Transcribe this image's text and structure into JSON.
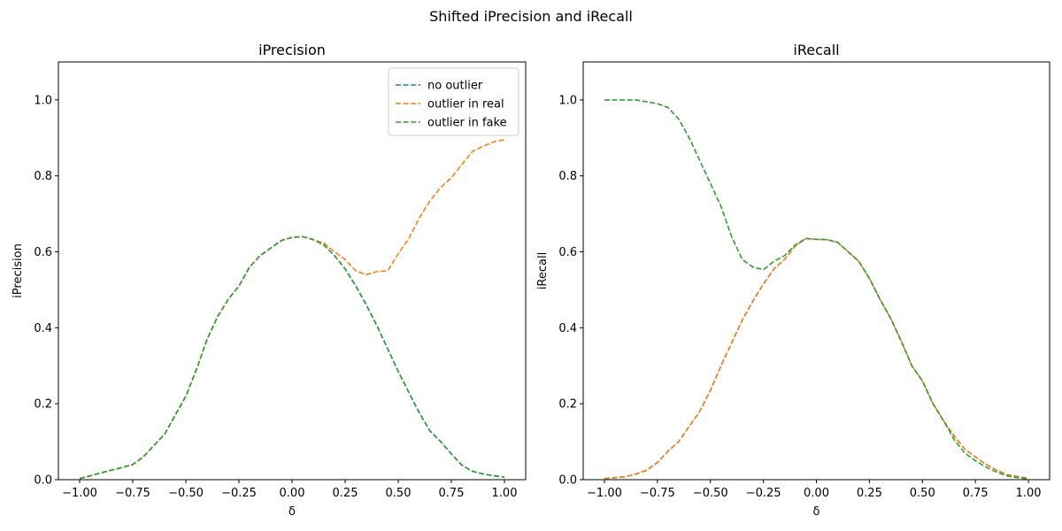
{
  "figure": {
    "suptitle": "Shifted iPrecision and iRecall"
  },
  "chart_data": [
    {
      "type": "line",
      "title": "iPrecision",
      "xlabel": "δ",
      "ylabel": "iPrecision",
      "xlim": [
        -1.1,
        1.1
      ],
      "ylim": [
        0.0,
        1.1
      ],
      "xticks": [
        -1.0,
        -0.75,
        -0.5,
        -0.25,
        0.0,
        0.25,
        0.5,
        0.75,
        1.0
      ],
      "xtick_labels": [
        "−1.00",
        "−0.75",
        "−0.50",
        "−0.25",
        "0.00",
        "0.25",
        "0.50",
        "0.75",
        "1.00"
      ],
      "yticks": [
        0.0,
        0.2,
        0.4,
        0.6,
        0.8,
        1.0
      ],
      "ytick_labels": [
        "0.0",
        "0.2",
        "0.4",
        "0.6",
        "0.8",
        "1.0"
      ],
      "legend": {
        "placement": "top-right",
        "entries": [
          "no outlier",
          "outlier in real",
          "outlier in fake"
        ]
      },
      "line_style": "dashed",
      "x": [
        -1.0,
        -0.95,
        -0.9,
        -0.85,
        -0.8,
        -0.75,
        -0.7,
        -0.65,
        -0.6,
        -0.55,
        -0.5,
        -0.45,
        -0.4,
        -0.35,
        -0.3,
        -0.25,
        -0.2,
        -0.15,
        -0.1,
        -0.05,
        0.0,
        0.05,
        0.1,
        0.15,
        0.2,
        0.25,
        0.3,
        0.35,
        0.4,
        0.45,
        0.5,
        0.55,
        0.6,
        0.65,
        0.7,
        0.75,
        0.8,
        0.85,
        0.9,
        0.95,
        1.0
      ],
      "series": [
        {
          "name": "no outlier",
          "color": "#1f77b4",
          "values": [
            0.003,
            0.01,
            0.018,
            0.025,
            0.032,
            0.04,
            0.06,
            0.09,
            0.12,
            0.17,
            0.22,
            0.29,
            0.37,
            0.43,
            0.475,
            0.51,
            0.56,
            0.59,
            0.61,
            0.63,
            0.638,
            0.64,
            0.632,
            0.618,
            0.59,
            0.555,
            0.51,
            0.46,
            0.405,
            0.345,
            0.285,
            0.23,
            0.175,
            0.128,
            0.1,
            0.068,
            0.038,
            0.022,
            0.015,
            0.01,
            0.007
          ]
        },
        {
          "name": "outlier in real",
          "color": "#ff7f0e",
          "values": [
            0.003,
            0.01,
            0.018,
            0.025,
            0.032,
            0.04,
            0.06,
            0.09,
            0.12,
            0.17,
            0.22,
            0.29,
            0.37,
            0.43,
            0.475,
            0.51,
            0.56,
            0.59,
            0.61,
            0.63,
            0.638,
            0.64,
            0.632,
            0.623,
            0.6,
            0.58,
            0.55,
            0.54,
            0.548,
            0.55,
            0.595,
            0.635,
            0.69,
            0.735,
            0.77,
            0.795,
            0.83,
            0.865,
            0.878,
            0.89,
            0.895
          ]
        },
        {
          "name": "outlier in fake",
          "color": "#2ca02c",
          "values": [
            0.003,
            0.01,
            0.018,
            0.025,
            0.032,
            0.04,
            0.06,
            0.09,
            0.12,
            0.17,
            0.22,
            0.29,
            0.37,
            0.43,
            0.475,
            0.51,
            0.56,
            0.59,
            0.61,
            0.63,
            0.638,
            0.64,
            0.632,
            0.618,
            0.59,
            0.555,
            0.51,
            0.46,
            0.405,
            0.345,
            0.285,
            0.23,
            0.175,
            0.128,
            0.1,
            0.068,
            0.038,
            0.022,
            0.015,
            0.01,
            0.007
          ]
        }
      ]
    },
    {
      "type": "line",
      "title": "iRecall",
      "xlabel": "δ",
      "ylabel": "iRecall",
      "xlim": [
        -1.1,
        1.1
      ],
      "ylim": [
        0.0,
        1.1
      ],
      "xticks": [
        -1.0,
        -0.75,
        -0.5,
        -0.25,
        0.0,
        0.25,
        0.5,
        0.75,
        1.0
      ],
      "xtick_labels": [
        "−1.00",
        "−0.75",
        "−0.50",
        "−0.25",
        "0.00",
        "0.25",
        "0.50",
        "0.75",
        "1.00"
      ],
      "yticks": [
        0.0,
        0.2,
        0.4,
        0.6,
        0.8,
        1.0
      ],
      "ytick_labels": [
        "0.0",
        "0.2",
        "0.4",
        "0.6",
        "0.8",
        "1.0"
      ],
      "line_style": "dashed",
      "x": [
        -1.0,
        -0.95,
        -0.9,
        -0.85,
        -0.8,
        -0.75,
        -0.7,
        -0.65,
        -0.6,
        -0.55,
        -0.5,
        -0.45,
        -0.4,
        -0.35,
        -0.3,
        -0.25,
        -0.2,
        -0.15,
        -0.1,
        -0.05,
        0.0,
        0.05,
        0.1,
        0.15,
        0.2,
        0.25,
        0.3,
        0.35,
        0.4,
        0.45,
        0.5,
        0.55,
        0.6,
        0.65,
        0.7,
        0.75,
        0.8,
        0.85,
        0.9,
        0.95,
        1.0
      ],
      "series": [
        {
          "name": "no outlier",
          "color": "#1f77b4",
          "values": [
            0.003,
            0.005,
            0.008,
            0.015,
            0.025,
            0.045,
            0.075,
            0.1,
            0.14,
            0.18,
            0.235,
            0.3,
            0.36,
            0.42,
            0.47,
            0.515,
            0.555,
            0.58,
            0.615,
            0.635,
            0.633,
            0.632,
            0.625,
            0.6,
            0.575,
            0.53,
            0.475,
            0.425,
            0.365,
            0.3,
            0.26,
            0.2,
            0.155,
            0.115,
            0.08,
            0.06,
            0.04,
            0.025,
            0.013,
            0.008,
            0.004
          ]
        },
        {
          "name": "outlier in real",
          "color": "#ff7f0e",
          "values": [
            0.003,
            0.005,
            0.008,
            0.015,
            0.025,
            0.045,
            0.075,
            0.1,
            0.14,
            0.18,
            0.235,
            0.3,
            0.36,
            0.42,
            0.47,
            0.515,
            0.555,
            0.58,
            0.615,
            0.635,
            0.633,
            0.632,
            0.625,
            0.6,
            0.575,
            0.53,
            0.475,
            0.425,
            0.365,
            0.3,
            0.26,
            0.2,
            0.155,
            0.115,
            0.08,
            0.06,
            0.04,
            0.025,
            0.013,
            0.008,
            0.004
          ]
        },
        {
          "name": "outlier in fake",
          "color": "#2ca02c",
          "values": [
            1.0,
            1.0,
            1.0,
            1.0,
            0.995,
            0.99,
            0.98,
            0.95,
            0.9,
            0.84,
            0.78,
            0.72,
            0.64,
            0.58,
            0.56,
            0.553,
            0.575,
            0.59,
            0.618,
            0.635,
            0.633,
            0.632,
            0.625,
            0.6,
            0.575,
            0.53,
            0.475,
            0.425,
            0.365,
            0.3,
            0.26,
            0.2,
            0.155,
            0.105,
            0.07,
            0.05,
            0.033,
            0.02,
            0.01,
            0.005,
            0.002
          ]
        }
      ]
    }
  ]
}
